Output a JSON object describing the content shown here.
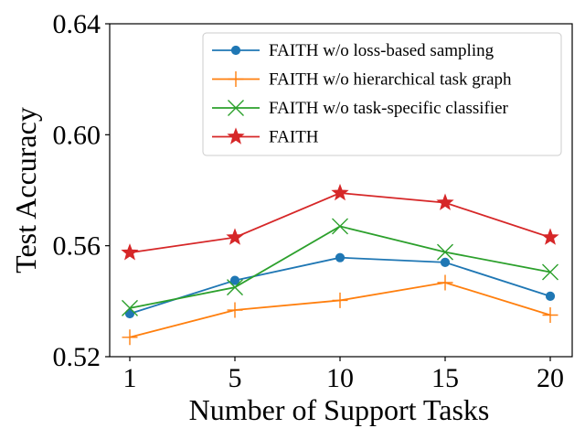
{
  "chart_data": {
    "type": "line",
    "title": "",
    "xlabel": "Number of Support Tasks",
    "ylabel": "Test Accuracy",
    "categories": [
      "1",
      "5",
      "10",
      "15",
      "20"
    ],
    "ylim": [
      0.52,
      0.64
    ],
    "yticks": [
      "0.52",
      "0.56",
      "0.60",
      "0.64"
    ],
    "ytick_values": [
      0.52,
      0.56,
      0.6,
      0.64
    ],
    "legend_position": "top-right",
    "grid": false,
    "series": [
      {
        "name": "FAITH w/o loss-based sampling",
        "color": "#1f77b4",
        "marker": "circle",
        "values": [
          0.5355,
          0.5475,
          0.5557,
          0.554,
          0.5418
        ]
      },
      {
        "name": "FAITH w/o hierarchical task graph",
        "color": "#ff7f0e",
        "marker": "plus",
        "values": [
          0.527,
          0.5368,
          0.5403,
          0.5467,
          0.535
        ]
      },
      {
        "name": "FAITH w/o task-specific classifier",
        "color": "#2ca02c",
        "marker": "x",
        "values": [
          0.5375,
          0.545,
          0.567,
          0.5577,
          0.5505
        ]
      },
      {
        "name": "FAITH",
        "color": "#d62728",
        "marker": "star",
        "values": [
          0.5575,
          0.563,
          0.579,
          0.5755,
          0.563
        ]
      }
    ]
  }
}
